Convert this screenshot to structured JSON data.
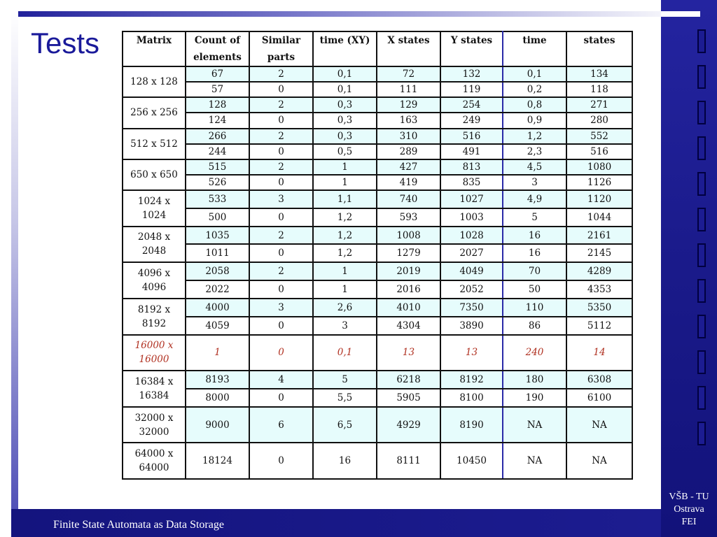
{
  "slide": {
    "title": "Tests",
    "footer": "Finite State Automata as Data Storage",
    "institution": [
      "VŠB - TU",
      "Ostrava",
      "FEI"
    ]
  },
  "table": {
    "headers": [
      [
        "Matrix"
      ],
      [
        "Count of",
        "elements"
      ],
      [
        "Similar",
        "parts"
      ],
      [
        "time (XY)"
      ],
      [
        "X states"
      ],
      [
        "Y states"
      ],
      [
        "time"
      ],
      [
        "states"
      ]
    ],
    "groups": [
      {
        "matrix": [
          "128 x 128"
        ],
        "rows": [
          [
            "67",
            "2",
            "0,1",
            "72",
            "132",
            "0,1",
            "134"
          ],
          [
            "57",
            "0",
            "0,1",
            "111",
            "119",
            "0,2",
            "118"
          ]
        ]
      },
      {
        "matrix": [
          "256 x 256"
        ],
        "rows": [
          [
            "128",
            "2",
            "0,3",
            "129",
            "254",
            "0,8",
            "271"
          ],
          [
            "124",
            "0",
            "0,3",
            "163",
            "249",
            "0,9",
            "280"
          ]
        ]
      },
      {
        "matrix": [
          "512 x 512"
        ],
        "rows": [
          [
            "266",
            "2",
            "0,3",
            "310",
            "516",
            "1,2",
            "552"
          ],
          [
            "244",
            "0",
            "0,5",
            "289",
            "491",
            "2,3",
            "516"
          ]
        ]
      },
      {
        "matrix": [
          "650 x 650"
        ],
        "rows": [
          [
            "515",
            "2",
            "1",
            "427",
            "813",
            "4,5",
            "1080"
          ],
          [
            "526",
            "0",
            "1",
            "419",
            "835",
            "3",
            "1126"
          ]
        ]
      },
      {
        "matrix": [
          "1024 x",
          "1024"
        ],
        "rows": [
          [
            "533",
            "3",
            "1,1",
            "740",
            "1027",
            "4,9",
            "1120"
          ],
          [
            "500",
            "0",
            "1,2",
            "593",
            "1003",
            "5",
            "1044"
          ]
        ]
      },
      {
        "matrix": [
          "2048 x",
          "2048"
        ],
        "rows": [
          [
            "1035",
            "2",
            "1,2",
            "1008",
            "1028",
            "16",
            "2161"
          ],
          [
            "1011",
            "0",
            "1,2",
            "1279",
            "2027",
            "16",
            "2145"
          ]
        ]
      },
      {
        "matrix": [
          "4096 x",
          "4096"
        ],
        "rows": [
          [
            "2058",
            "2",
            "1",
            "2019",
            "4049",
            "70",
            "4289"
          ],
          [
            "2022",
            "0",
            "1",
            "2016",
            "2052",
            "50",
            "4353"
          ]
        ]
      },
      {
        "matrix": [
          "8192 x",
          "8192"
        ],
        "rows": [
          [
            "4000",
            "3",
            "2,6",
            "4010",
            "7350",
            "110",
            "5350"
          ],
          [
            "4059",
            "0",
            "3",
            "4304",
            "3890",
            "86",
            "5112"
          ]
        ]
      },
      {
        "matrix": [
          "16000 x",
          "16000"
        ],
        "italic": true,
        "rows": [
          [
            "1",
            "0",
            "0,1",
            "13",
            "13",
            "240",
            "14"
          ]
        ]
      },
      {
        "matrix": [
          "16384 x",
          "16384"
        ],
        "rows": [
          [
            "8193",
            "4",
            "5",
            "6218",
            "8192",
            "180",
            "6308"
          ],
          [
            "8000",
            "0",
            "5,5",
            "5905",
            "8100",
            "190",
            "6100"
          ]
        ]
      },
      {
        "matrix": [
          "32000 x",
          "32000"
        ],
        "rows": [
          [
            "9000",
            "6",
            "6,5",
            "4929",
            "8190",
            "NA",
            "NA"
          ]
        ]
      },
      {
        "matrix": [
          "64000 x",
          "64000"
        ],
        "rows": [
          [
            "18124",
            "0",
            "16",
            "8111",
            "10450",
            "NA",
            "NA"
          ]
        ]
      }
    ]
  }
}
